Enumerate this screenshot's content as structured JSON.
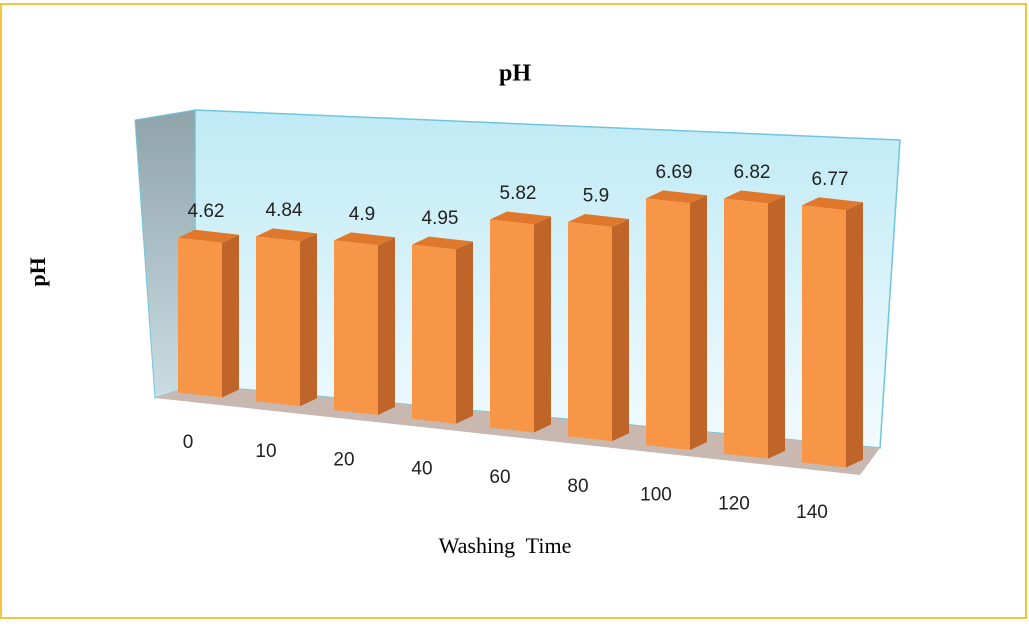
{
  "chart_data": {
    "type": "bar",
    "title": "pH",
    "y_label": "pH",
    "x_label": "Washing  Time",
    "categories": [
      "0",
      "10",
      "20",
      "40",
      "60",
      "80",
      "100",
      "120",
      "140"
    ],
    "values": [
      4.62,
      4.84,
      4.9,
      4.95,
      5.82,
      5.9,
      6.69,
      6.82,
      6.77
    ],
    "color": "#f79646",
    "ylim": [
      0,
      8
    ]
  }
}
